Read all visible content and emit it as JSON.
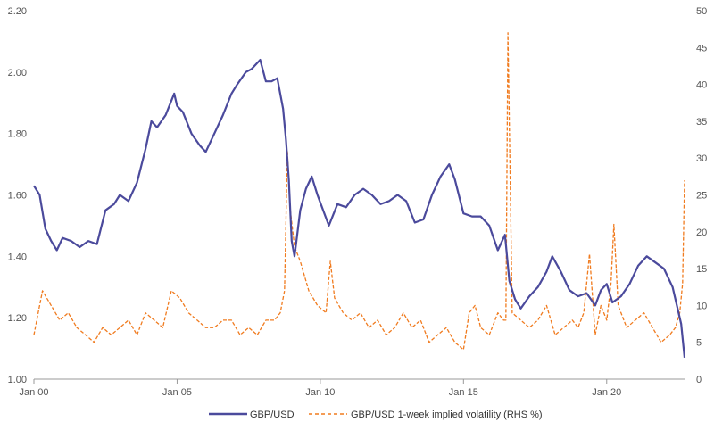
{
  "chart_data": {
    "type": "line",
    "title": "",
    "xlabel": "",
    "ylabel": "",
    "x_ticks": [
      {
        "year": 2000,
        "label": "Jan 00"
      },
      {
        "year": 2005,
        "label": "Jan 05"
      },
      {
        "year": 2010,
        "label": "Jan 10"
      },
      {
        "year": 2015,
        "label": "Jan 15"
      },
      {
        "year": 2020,
        "label": "Jan 20"
      }
    ],
    "xlim": [
      2000,
      2022.75
    ],
    "y_left": {
      "min": 1.0,
      "max": 2.2,
      "ticks": [
        "1.00",
        "1.20",
        "1.40",
        "1.60",
        "1.80",
        "2.00",
        "2.20"
      ]
    },
    "y_right": {
      "min": 0,
      "max": 50,
      "ticks": [
        "0",
        "5",
        "10",
        "15",
        "20",
        "25",
        "30",
        "35",
        "40",
        "45",
        "50"
      ]
    },
    "colors": {
      "spot": "#4b4a9c",
      "vol": "#f07b1f",
      "axis": "#999999"
    },
    "series": [
      {
        "name": "GBP/USD",
        "axis": "left",
        "style": "solid",
        "x": [
          2000.0,
          2000.2,
          2000.4,
          2000.6,
          2000.8,
          2001.0,
          2001.3,
          2001.6,
          2001.9,
          2002.2,
          2002.5,
          2002.8,
          2003.0,
          2003.3,
          2003.6,
          2003.9,
          2004.1,
          2004.3,
          2004.6,
          2004.9,
          2005.0,
          2005.2,
          2005.5,
          2005.8,
          2006.0,
          2006.3,
          2006.6,
          2006.9,
          2007.1,
          2007.4,
          2007.6,
          2007.9,
          2008.1,
          2008.3,
          2008.5,
          2008.7,
          2008.8,
          2008.9,
          2009.0,
          2009.1,
          2009.3,
          2009.5,
          2009.7,
          2009.9,
          2010.1,
          2010.3,
          2010.6,
          2010.9,
          2011.2,
          2011.5,
          2011.8,
          2012.1,
          2012.4,
          2012.7,
          2013.0,
          2013.3,
          2013.6,
          2013.9,
          2014.2,
          2014.5,
          2014.7,
          2015.0,
          2015.3,
          2015.6,
          2015.9,
          2016.2,
          2016.45,
          2016.6,
          2016.8,
          2017.0,
          2017.3,
          2017.6,
          2017.9,
          2018.1,
          2018.4,
          2018.7,
          2019.0,
          2019.3,
          2019.6,
          2019.8,
          2020.0,
          2020.2,
          2020.5,
          2020.8,
          2021.1,
          2021.4,
          2021.7,
          2022.0,
          2022.3,
          2022.6,
          2022.72
        ],
        "values": [
          1.63,
          1.6,
          1.49,
          1.45,
          1.42,
          1.46,
          1.45,
          1.43,
          1.45,
          1.44,
          1.55,
          1.57,
          1.6,
          1.58,
          1.64,
          1.75,
          1.84,
          1.82,
          1.86,
          1.93,
          1.89,
          1.87,
          1.8,
          1.76,
          1.74,
          1.8,
          1.86,
          1.93,
          1.96,
          2.0,
          2.01,
          2.04,
          1.97,
          1.97,
          1.98,
          1.88,
          1.78,
          1.65,
          1.45,
          1.4,
          1.55,
          1.62,
          1.66,
          1.6,
          1.55,
          1.5,
          1.57,
          1.56,
          1.6,
          1.62,
          1.6,
          1.57,
          1.58,
          1.6,
          1.58,
          1.51,
          1.52,
          1.6,
          1.66,
          1.7,
          1.65,
          1.54,
          1.53,
          1.53,
          1.5,
          1.42,
          1.47,
          1.32,
          1.26,
          1.23,
          1.27,
          1.3,
          1.35,
          1.4,
          1.35,
          1.29,
          1.27,
          1.28,
          1.24,
          1.29,
          1.31,
          1.25,
          1.27,
          1.31,
          1.37,
          1.4,
          1.38,
          1.36,
          1.3,
          1.18,
          1.07
        ]
      },
      {
        "name": "GBP/USD 1-week implied volatility (RHS %)",
        "axis": "right",
        "style": "dashed",
        "x": [
          2000.0,
          2000.3,
          2000.6,
          2000.9,
          2001.2,
          2001.5,
          2001.8,
          2002.1,
          2002.4,
          2002.7,
          2003.0,
          2003.3,
          2003.6,
          2003.9,
          2004.2,
          2004.5,
          2004.8,
          2005.1,
          2005.4,
          2005.7,
          2006.0,
          2006.3,
          2006.6,
          2006.9,
          2007.2,
          2007.5,
          2007.8,
          2008.1,
          2008.4,
          2008.6,
          2008.75,
          2008.85,
          2008.95,
          2009.1,
          2009.3,
          2009.6,
          2009.9,
          2010.2,
          2010.35,
          2010.5,
          2010.8,
          2011.1,
          2011.4,
          2011.7,
          2012.0,
          2012.3,
          2012.6,
          2012.9,
          2013.2,
          2013.5,
          2013.8,
          2014.1,
          2014.4,
          2014.7,
          2015.0,
          2015.2,
          2015.4,
          2015.6,
          2015.9,
          2016.2,
          2016.4,
          2016.48,
          2016.55,
          2016.7,
          2017.0,
          2017.3,
          2017.6,
          2017.9,
          2018.2,
          2018.5,
          2018.8,
          2019.0,
          2019.2,
          2019.4,
          2019.6,
          2019.8,
          2020.0,
          2020.15,
          2020.25,
          2020.4,
          2020.7,
          2021.0,
          2021.3,
          2021.6,
          2021.9,
          2022.2,
          2022.4,
          2022.55,
          2022.65,
          2022.72
        ],
        "values": [
          6,
          12,
          10,
          8,
          9,
          7,
          6,
          5,
          7,
          6,
          7,
          8,
          6,
          9,
          8,
          7,
          12,
          11,
          9,
          8,
          7,
          7,
          8,
          8,
          6,
          7,
          6,
          8,
          8,
          9,
          12,
          31,
          23,
          18,
          16,
          12,
          10,
          9,
          16,
          11,
          9,
          8,
          9,
          7,
          8,
          6,
          7,
          9,
          7,
          8,
          5,
          6,
          7,
          5,
          4,
          9,
          10,
          7,
          6,
          9,
          8,
          8,
          47,
          9,
          8,
          7,
          8,
          10,
          6,
          7,
          8,
          7,
          9,
          17,
          6,
          10,
          8,
          13,
          21,
          10,
          7,
          8,
          9,
          7,
          5,
          6,
          7,
          9,
          13,
          27
        ]
      }
    ],
    "legend": {
      "placement": "bottom-center",
      "entries": [
        "GBP/USD",
        "GBP/USD 1-week implied volatility (RHS %)"
      ]
    }
  }
}
